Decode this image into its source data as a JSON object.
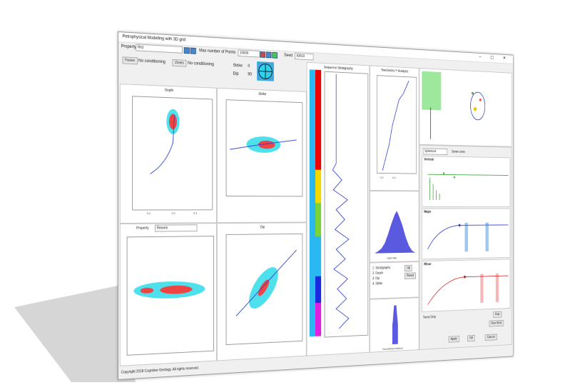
{
  "window": {
    "title": "Petrophysical Modelling with 3D grid"
  },
  "toolbar": {
    "property_label": "Property",
    "property_value": "Rh2",
    "max_points_label": "Max number of Points",
    "max_points": "10000",
    "seed_label": "Seed",
    "seed_value": "83503"
  },
  "conditioning": {
    "facies": "Facies",
    "facies_value": "No conditioning",
    "zones": "Zones",
    "zones_value": "No conditioning",
    "strike_label": "Strike",
    "strike_value": "0",
    "dip_label": "Dip",
    "dip_value": "90"
  },
  "panels": {
    "depth": "Depth",
    "strike": "Strike",
    "property": "Property",
    "property_value": "Rework",
    "dip": "Dip",
    "sequence": "Sequence Stratigraphy",
    "timeseries": "TimeSeries™ Analysis",
    "input_data": "Input data",
    "residual": "Geometrical residual",
    "ticks_small": [
      "0.1",
      "0.2",
      "0.3"
    ]
  },
  "list": [
    "1. Stratigraphy",
    "2. Depth",
    "3. Dip",
    "4. Strike"
  ],
  "buttons": {
    "up": "Up",
    "reset": "Reset",
    "run": "Run",
    "run_next": "Run Next",
    "apply": "Apply",
    "ok": "OK",
    "cancel": "Cancel"
  },
  "variogram": {
    "model": "Spherical",
    "same_zone": "Same zone",
    "vertical": "Vertical",
    "major": "Major",
    "minor": "Minor",
    "trend_only": "Trend Only"
  },
  "footer": "Copyright 2018 Cognitive Geology. All rights reserved."
}
